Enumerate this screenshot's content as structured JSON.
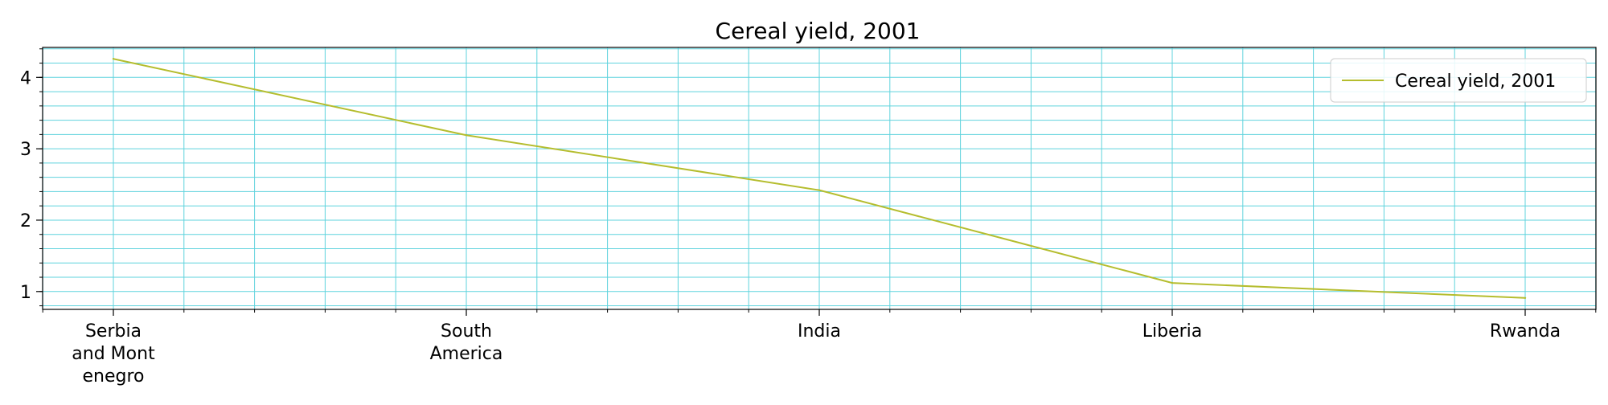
{
  "chart_data": {
    "type": "line",
    "title": "Cereal yield, 2001",
    "xlabel": "",
    "ylabel": "",
    "categories": [
      "Serbia and Montenegro",
      "South America",
      "India",
      "Liberia",
      "Rwanda"
    ],
    "category_tick_labels": [
      [
        "Serbia",
        "and Mont",
        "enegro"
      ],
      [
        "South",
        "America"
      ],
      [
        "India"
      ],
      [
        "Liberia"
      ],
      [
        "Rwanda"
      ]
    ],
    "series": [
      {
        "name": "Cereal yield, 2001",
        "values": [
          4.26,
          3.19,
          2.42,
          1.12,
          0.91
        ],
        "color": "#b5bd2e"
      }
    ],
    "ylim": [
      0.75,
      4.42
    ],
    "yticks": [
      1,
      2,
      3,
      4
    ],
    "y_minor_step": 0.2,
    "grid": true,
    "grid_color": "#5fd3dd",
    "legend_position": "top-right"
  }
}
